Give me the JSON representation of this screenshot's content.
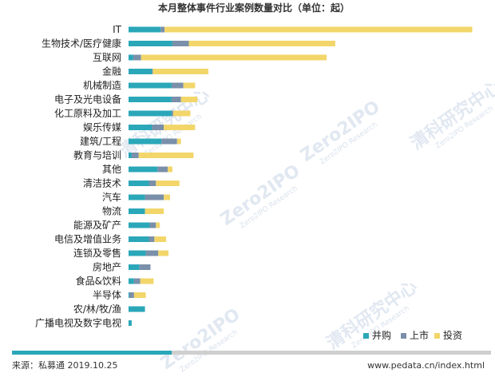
{
  "chart_data": {
    "type": "bar",
    "orientation": "horizontal",
    "stacked": true,
    "title": "本月整体事件行业案例数量对比（单位：起）",
    "categories": [
      "IT",
      "生物技术/医疗健康",
      "互联网",
      "金融",
      "机械制造",
      "电子及光电设备",
      "化工原料及加工",
      "娱乐传媒",
      "建筑/工程",
      "教育与培训",
      "其他",
      "清洁技术",
      "汽车",
      "物流",
      "能源及矿产",
      "电信及增值业务",
      "连锁及零售",
      "房地产",
      "食品&饮料",
      "半导体",
      "农/林/牧/渔",
      "广播电视及数字电视"
    ],
    "series": [
      {
        "name": "并购",
        "color": "#2aa7b8",
        "values": [
          41,
          56,
          6,
          30,
          55,
          55,
          55,
          30,
          42,
          4,
          37,
          26,
          21,
          21,
          27,
          26,
          22,
          14,
          7,
          1,
          21,
          4
        ]
      },
      {
        "name": "上市",
        "color": "#7a8fa9",
        "values": [
          5,
          21,
          10,
          1,
          15,
          12,
          2,
          15,
          20,
          9,
          13,
          9,
          24,
          0,
          8,
          7,
          16,
          14,
          8,
          6,
          0,
          0
        ]
      },
      {
        "name": "投资",
        "color": "#f2d66a",
        "values": [
          393,
          187,
          237,
          71,
          15,
          21,
          22,
          40,
          5,
          70,
          6,
          30,
          8,
          24,
          5,
          15,
          13,
          0,
          17,
          15,
          0,
          0
        ]
      }
    ],
    "xlim": [
      0,
      450
    ],
    "legend_position": "bottom-right",
    "grid": false,
    "axis_visible": false
  },
  "footer": {
    "source": "来源：私募通  2019.10.25",
    "website": "www.pedata.cn/index.html"
  },
  "watermark": {
    "brand": "清科研究中心",
    "logo": "Zero2IPO",
    "sub": "Zero2IPO Research"
  },
  "colors": {
    "footer_bar_accent": "#2aa7b8",
    "footer_bar_base": "#cfcfcf"
  }
}
